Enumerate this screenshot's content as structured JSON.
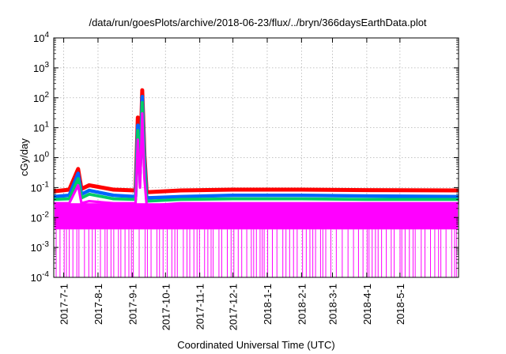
{
  "chart_data": {
    "type": "line",
    "title": "/data/run/goesPlots/archive/2018-06-23/flux/../bryn/366daysEarthData.plot",
    "xlabel": "Coordinated Universal Time (UTC)",
    "ylabel": "cGy/day",
    "yscale": "log",
    "ylim": [
      0.0001,
      10000
    ],
    "xlim": [
      "2017-06-22",
      "2018-06-23"
    ],
    "grid": true,
    "ytick_values": [
      0.0001,
      0.001,
      0.01,
      0.1,
      1,
      10,
      100,
      1000,
      10000
    ],
    "ytick_labels": [
      {
        "base": "10",
        "exp": "-4"
      },
      {
        "base": "10",
        "exp": "-3"
      },
      {
        "base": "10",
        "exp": "-2"
      },
      {
        "base": "10",
        "exp": "-1"
      },
      {
        "base": "10",
        "exp": "0"
      },
      {
        "base": "10",
        "exp": "1"
      },
      {
        "base": "10",
        "exp": "2"
      },
      {
        "base": "10",
        "exp": "3"
      },
      {
        "base": "10",
        "exp": "4"
      }
    ],
    "xticks": [
      {
        "date": "2017-07-01",
        "label": "2017-7-1"
      },
      {
        "date": "2017-08-01",
        "label": "2017-8-1"
      },
      {
        "date": "2017-09-01",
        "label": "2017-9-1"
      },
      {
        "date": "2017-10-01",
        "label": "2017-10-1"
      },
      {
        "date": "2017-11-01",
        "label": "2017-11-1"
      },
      {
        "date": "2017-12-01",
        "label": "2017-12-1"
      },
      {
        "date": "2018-01-01",
        "label": "2018-1-1"
      },
      {
        "date": "2018-02-01",
        "label": "2018-2-1"
      },
      {
        "date": "2018-03-01",
        "label": "2018-3-1"
      },
      {
        "date": "2018-04-01",
        "label": "2018-4-1"
      },
      {
        "date": "2018-05-01",
        "label": "2018-5-1"
      }
    ],
    "series": [
      {
        "color": "#ff0000",
        "points": [
          [
            "2017-06-22",
            0.075
          ],
          [
            "2017-07-06",
            0.085
          ],
          [
            "2017-07-14",
            0.42
          ],
          [
            "2017-07-17",
            0.09
          ],
          [
            "2017-07-24",
            0.12
          ],
          [
            "2017-08-15",
            0.085
          ],
          [
            "2017-09-04",
            0.08
          ],
          [
            "2017-09-06",
            22
          ],
          [
            "2017-09-08",
            0.5
          ],
          [
            "2017-09-10",
            180
          ],
          [
            "2017-09-12",
            1.2
          ],
          [
            "2017-09-14",
            0.07
          ],
          [
            "2017-10-15",
            0.08
          ],
          [
            "2017-12-01",
            0.085
          ],
          [
            "2018-02-01",
            0.085
          ],
          [
            "2018-04-01",
            0.082
          ],
          [
            "2018-06-23",
            0.08
          ]
        ]
      },
      {
        "color": "#0066ff",
        "points": [
          [
            "2017-06-22",
            0.05
          ],
          [
            "2017-07-06",
            0.055
          ],
          [
            "2017-07-14",
            0.3
          ],
          [
            "2017-07-17",
            0.06
          ],
          [
            "2017-07-24",
            0.08
          ],
          [
            "2017-08-15",
            0.055
          ],
          [
            "2017-09-04",
            0.05
          ],
          [
            "2017-09-06",
            12
          ],
          [
            "2017-09-08",
            0.3
          ],
          [
            "2017-09-10",
            110
          ],
          [
            "2017-09-12",
            0.8
          ],
          [
            "2017-09-14",
            0.045
          ],
          [
            "2017-10-15",
            0.05
          ],
          [
            "2017-12-01",
            0.055
          ],
          [
            "2018-02-01",
            0.055
          ],
          [
            "2018-04-01",
            0.052
          ],
          [
            "2018-06-23",
            0.05
          ]
        ]
      },
      {
        "color": "#00cc66",
        "points": [
          [
            "2017-06-22",
            0.04
          ],
          [
            "2017-07-06",
            0.042
          ],
          [
            "2017-07-14",
            0.2
          ],
          [
            "2017-07-17",
            0.045
          ],
          [
            "2017-07-24",
            0.06
          ],
          [
            "2017-08-15",
            0.042
          ],
          [
            "2017-09-04",
            0.04
          ],
          [
            "2017-09-06",
            8
          ],
          [
            "2017-09-08",
            0.2
          ],
          [
            "2017-09-10",
            70
          ],
          [
            "2017-09-12",
            0.5
          ],
          [
            "2017-09-14",
            0.035
          ],
          [
            "2017-10-15",
            0.04
          ],
          [
            "2017-12-01",
            0.042
          ],
          [
            "2018-02-01",
            0.042
          ],
          [
            "2018-04-01",
            0.04
          ],
          [
            "2018-06-23",
            0.04
          ]
        ]
      },
      {
        "color": "#ff00ff",
        "points": [
          [
            "2017-06-22",
            0.03
          ],
          [
            "2017-07-06",
            0.03
          ],
          [
            "2017-07-14",
            0.12
          ],
          [
            "2017-07-17",
            0.03
          ],
          [
            "2017-07-24",
            0.035
          ],
          [
            "2017-08-15",
            0.03
          ],
          [
            "2017-09-04",
            0.03
          ],
          [
            "2017-09-06",
            4
          ],
          [
            "2017-09-08",
            0.1
          ],
          [
            "2017-09-10",
            30
          ],
          [
            "2017-09-12",
            0.2
          ],
          [
            "2017-09-14",
            0.025
          ],
          [
            "2017-10-15",
            0.03
          ],
          [
            "2017-12-01",
            0.03
          ],
          [
            "2018-02-01",
            0.03
          ],
          [
            "2018-04-01",
            0.03
          ],
          [
            "2018-06-23",
            0.03
          ]
        ]
      }
    ],
    "noise_floor": {
      "color": "#ff00ff",
      "low": 0.004,
      "dropouts_to": 0.0001
    }
  }
}
